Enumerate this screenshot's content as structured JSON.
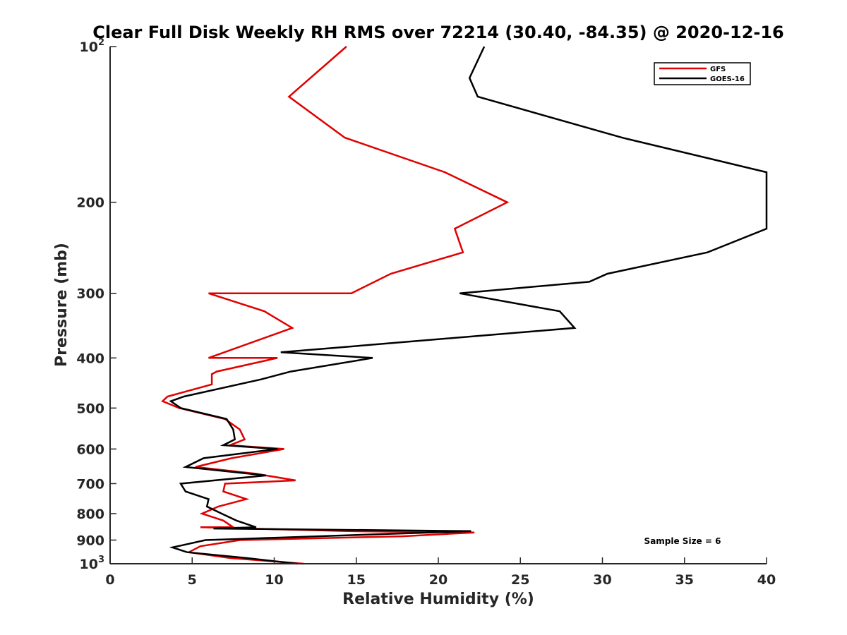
{
  "chart_data": {
    "type": "line",
    "title": "Clear Full Disk Weekly RH RMS over 72214 (30.40, -84.35) @ 2020-12-16",
    "xlabel": "Relative Humidity (%)",
    "ylabel": "Pressure (mb)",
    "xlim": [
      0,
      40
    ],
    "ylim": [
      100,
      1000
    ],
    "yscale": "log",
    "y_reversed": true,
    "xticks": [
      0,
      5,
      10,
      15,
      20,
      25,
      30,
      35,
      40
    ],
    "xtick_labels": [
      "0",
      "5",
      "10",
      "15",
      "20",
      "25",
      "30",
      "35",
      "40"
    ],
    "yticks": [
      100,
      200,
      300,
      400,
      500,
      600,
      700,
      800,
      900,
      1000
    ],
    "ytick_labels": [
      {
        "base": "10",
        "exp": "2"
      },
      {
        "base": "200"
      },
      {
        "base": "300"
      },
      {
        "base": "400"
      },
      {
        "base": "500"
      },
      {
        "base": "600"
      },
      {
        "base": "700"
      },
      {
        "base": "800"
      },
      {
        "base": "900"
      },
      {
        "base": "10",
        "exp": "3"
      }
    ],
    "legend_position": "top-right",
    "annotation": "Sample Size = 6",
    "series": [
      {
        "name": "GFS",
        "color": "#e00000",
        "points": [
          [
            14.4,
            100
          ],
          [
            10.9,
            125
          ],
          [
            14.3,
            150
          ],
          [
            20.4,
            175
          ],
          [
            24.2,
            200
          ],
          [
            21.0,
            225
          ],
          [
            21.5,
            250
          ],
          [
            17.1,
            275
          ],
          [
            14.7,
            300
          ],
          [
            6.0,
            300
          ],
          [
            9.4,
            325
          ],
          [
            11.1,
            350
          ],
          [
            6.0,
            400
          ],
          [
            10.2,
            400
          ],
          [
            6.5,
            425
          ],
          [
            6.2,
            430
          ],
          [
            6.2,
            450
          ],
          [
            3.5,
            475
          ],
          [
            3.2,
            485
          ],
          [
            4.2,
            500
          ],
          [
            7.0,
            525
          ],
          [
            7.9,
            550
          ],
          [
            8.2,
            575
          ],
          [
            7.3,
            590
          ],
          [
            10.6,
            600
          ],
          [
            7.4,
            625
          ],
          [
            5.2,
            650
          ],
          [
            8.9,
            670
          ],
          [
            11.3,
            690
          ],
          [
            7.0,
            700
          ],
          [
            6.9,
            725
          ],
          [
            8.3,
            750
          ],
          [
            6.6,
            775
          ],
          [
            5.6,
            800
          ],
          [
            6.9,
            825
          ],
          [
            7.5,
            850
          ],
          [
            5.5,
            850
          ],
          [
            14.5,
            865
          ],
          [
            22.2,
            870
          ],
          [
            17.8,
            885
          ],
          [
            7.9,
            900
          ],
          [
            5.5,
            925
          ],
          [
            4.8,
            950
          ],
          [
            7.3,
            975
          ],
          [
            11.8,
            1000
          ]
        ]
      },
      {
        "name": "GOES-16",
        "color": "#000000",
        "points": [
          [
            22.8,
            100
          ],
          [
            21.9,
            115
          ],
          [
            22.4,
            125
          ],
          [
            31.2,
            150
          ],
          [
            40.0,
            175
          ],
          [
            40.0,
            225
          ],
          [
            36.4,
            250
          ],
          [
            30.3,
            275
          ],
          [
            29.2,
            285
          ],
          [
            21.3,
            300
          ],
          [
            27.4,
            325
          ],
          [
            28.3,
            350
          ],
          [
            10.4,
            390
          ],
          [
            16.0,
            400
          ],
          [
            11.0,
            425
          ],
          [
            9.2,
            440
          ],
          [
            4.5,
            475
          ],
          [
            3.7,
            485
          ],
          [
            4.3,
            500
          ],
          [
            7.1,
            525
          ],
          [
            7.5,
            550
          ],
          [
            7.6,
            575
          ],
          [
            6.9,
            590
          ],
          [
            10.2,
            600
          ],
          [
            5.7,
            625
          ],
          [
            4.6,
            650
          ],
          [
            9.5,
            675
          ],
          [
            4.3,
            700
          ],
          [
            4.6,
            725
          ],
          [
            6.0,
            750
          ],
          [
            5.9,
            775
          ],
          [
            6.8,
            800
          ],
          [
            7.7,
            825
          ],
          [
            8.9,
            850
          ],
          [
            6.3,
            855
          ],
          [
            22.0,
            865
          ],
          [
            5.8,
            900
          ],
          [
            3.8,
            930
          ],
          [
            4.7,
            950
          ],
          [
            8.3,
            975
          ],
          [
            11.4,
            1000
          ]
        ]
      }
    ]
  }
}
